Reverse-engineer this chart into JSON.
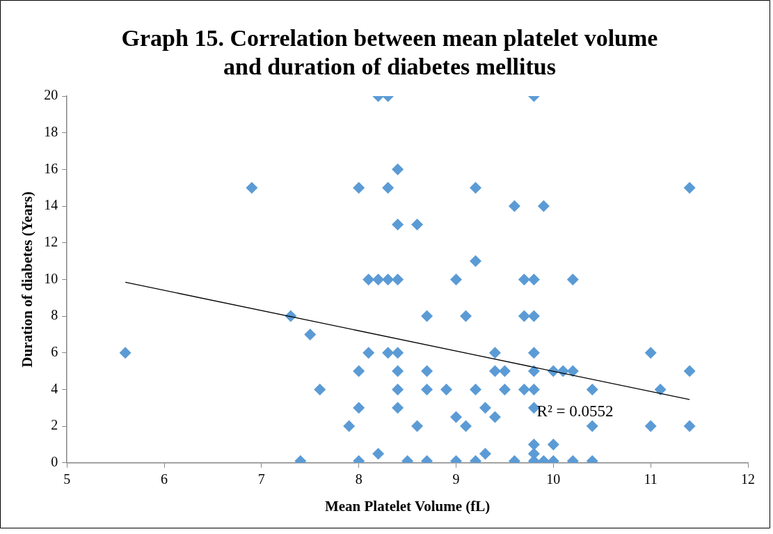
{
  "chart_data": {
    "type": "scatter",
    "title": "Graph 15. Correlation between mean platelet volume and duration of diabetes mellitus",
    "xlabel": "Mean Platelet Volume (fL)",
    "ylabel": "Duration of diabetes (Years)",
    "xlim": [
      5,
      12
    ],
    "xticks": [
      5,
      6,
      7,
      8,
      9,
      10,
      11,
      12
    ],
    "ylim": [
      0,
      20
    ],
    "yticks": [
      0,
      2,
      4,
      6,
      8,
      10,
      12,
      14,
      16,
      18,
      20
    ],
    "grid": false,
    "legend": false,
    "marker": "diamond",
    "annotations": [
      "R² = 0.0552"
    ],
    "series": [
      {
        "color": "#5b9bd5",
        "x": [
          5.6,
          6.9,
          7.3,
          7.4,
          7.5,
          7.6,
          7.9,
          8,
          8,
          8,
          8,
          8.1,
          8.1,
          8.2,
          8.2,
          8.2,
          8.3,
          8.3,
          8.3,
          8.3,
          8.4,
          8.4,
          8.4,
          8.4,
          8.4,
          8.4,
          8.4,
          8.5,
          8.6,
          8.6,
          8.7,
          8.7,
          8.7,
          8.7,
          8.9,
          9,
          9,
          9,
          9.1,
          9.1,
          9.2,
          9.2,
          9.2,
          9.2,
          9.3,
          9.3,
          9.4,
          9.4,
          9.4,
          9.5,
          9.5,
          9.6,
          9.6,
          9.7,
          9.7,
          9.7,
          9.8,
          9.8,
          9.8,
          9.8,
          9.8,
          9.8,
          9.8,
          9.8,
          9.8,
          9.8,
          9.9,
          9.9,
          10,
          10,
          10,
          10.1,
          10.2,
          10.2,
          10.2,
          10.4,
          10.4,
          10.4,
          11,
          11,
          11.1,
          11.4,
          11.4,
          11.4
        ],
        "values": [
          6,
          15,
          8,
          0.1,
          7,
          4,
          2,
          15,
          5,
          3,
          0.1,
          10,
          6,
          20,
          10,
          0.5,
          20,
          15,
          10,
          6,
          16,
          13,
          10,
          6,
          5,
          4,
          3,
          0.1,
          13,
          2,
          8,
          5,
          4,
          0.1,
          4,
          10,
          2.5,
          0.1,
          8,
          2,
          15,
          11,
          4,
          0.1,
          3,
          0.5,
          6,
          5,
          2.5,
          5,
          4,
          14,
          0.1,
          10,
          8,
          4,
          20,
          10,
          8,
          6,
          5,
          4,
          3,
          1,
          0.5,
          0.1,
          14,
          0.1,
          5,
          1,
          0.1,
          5,
          10,
          5,
          0.1,
          4,
          2,
          0.1,
          6,
          2,
          4,
          15,
          5,
          2
        ]
      },
      {
        "type": "line",
        "color": "#000000",
        "marker": "none",
        "x": [
          5.6,
          11.4
        ],
        "values": [
          9.85,
          3.45
        ]
      }
    ]
  }
}
